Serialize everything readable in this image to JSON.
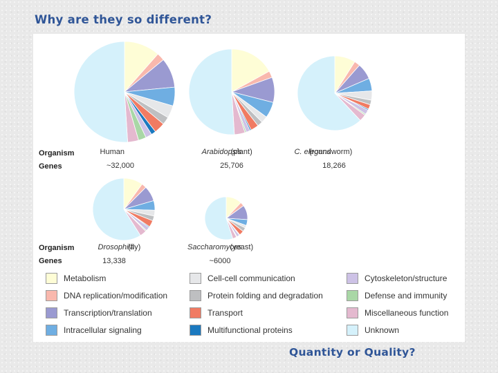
{
  "slide": {
    "title": "Why are they so different?",
    "footer": "Quantity or Quality?"
  },
  "colors": {
    "metabolism": "#fefdd6",
    "dna": "#f9b8ad",
    "transcription": "#9a9ad1",
    "intracellular": "#6faee2",
    "cellcell": "#e6e7e9",
    "folding": "#bebfc1",
    "transport": "#f07b63",
    "multifunctional": "#1b79bf",
    "cytoskeleton": "#cdc2e6",
    "defense": "#a9d7a6",
    "misc": "#e4b9cf",
    "unknown": "#d5f1fb"
  },
  "chart_data": {
    "type": "pie",
    "row_headers": {
      "organism": "Organism",
      "genes": "Genes"
    },
    "categories": [
      "Metabolism",
      "DNA replication/modification",
      "Transcription/translation",
      "Intracellular signaling",
      "Cell-cell communication",
      "Protein folding and degradation",
      "Transport",
      "Multifunctional proteins",
      "Cytoskeleton/structure",
      "Defense and immunity",
      "Miscellaneous function",
      "Unknown"
    ],
    "legend": [
      {
        "label": "Metabolism",
        "color_key": "metabolism"
      },
      {
        "label": "Cell-cell communication",
        "color_key": "cellcell"
      },
      {
        "label": "Cytoskeleton/structure",
        "color_key": "cytoskeleton"
      },
      {
        "label": "DNA replication/modification",
        "color_key": "dna"
      },
      {
        "label": "Protein folding and degradation",
        "color_key": "folding"
      },
      {
        "label": "Defense and immunity",
        "color_key": "defense"
      },
      {
        "label": "Transcription/translation",
        "color_key": "transcription"
      },
      {
        "label": "Transport",
        "color_key": "transport"
      },
      {
        "label": "Miscellaneous function",
        "color_key": "misc"
      },
      {
        "label": "Intracellular signaling",
        "color_key": "intracellular"
      },
      {
        "label": "Multifunctional proteins",
        "color_key": "multifunctional"
      },
      {
        "label": "Unknown",
        "color_key": "unknown"
      }
    ],
    "organisms": [
      {
        "name": "Human",
        "name_italic": "",
        "name_suffix": "",
        "genes": "~32,000",
        "slices": [
          {
            "category": "Metabolism",
            "color_key": "metabolism",
            "value": 11.5
          },
          {
            "category": "DNA replication/modification",
            "color_key": "dna",
            "value": 2.5
          },
          {
            "category": "Transcription/translation",
            "color_key": "transcription",
            "value": 9.5
          },
          {
            "category": "Intracellular signaling",
            "color_key": "intracellular",
            "value": 6.0
          },
          {
            "category": "Cell-cell communication",
            "color_key": "cellcell",
            "value": 4.0
          },
          {
            "category": "Protein folding and degradation",
            "color_key": "folding",
            "value": 2.5
          },
          {
            "category": "Transport",
            "color_key": "transport",
            "value": 3.5
          },
          {
            "category": "Multifunctional proteins",
            "color_key": "multifunctional",
            "value": 1.5
          },
          {
            "category": "Cytoskeleton/structure",
            "color_key": "cytoskeleton",
            "value": 2.0
          },
          {
            "category": "Defense and immunity",
            "color_key": "defense",
            "value": 2.5
          },
          {
            "category": "Miscellaneous function",
            "color_key": "misc",
            "value": 3.5
          },
          {
            "category": "Unknown",
            "color_key": "unknown",
            "value": 51.0
          }
        ]
      },
      {
        "name": "",
        "name_italic": "Arabidopsis",
        "name_suffix": " (plant)",
        "genes": "25,706",
        "slices": [
          {
            "category": "Metabolism",
            "color_key": "metabolism",
            "value": 17.0
          },
          {
            "category": "DNA replication/modification",
            "color_key": "dna",
            "value": 2.5
          },
          {
            "category": "Transcription/translation",
            "color_key": "transcription",
            "value": 9.5
          },
          {
            "category": "Intracellular signaling",
            "color_key": "intracellular",
            "value": 6.0
          },
          {
            "category": "Cell-cell communication",
            "color_key": "cellcell",
            "value": 2.5
          },
          {
            "category": "Protein folding and degradation",
            "color_key": "folding",
            "value": 2.0
          },
          {
            "category": "Transport",
            "color_key": "transport",
            "value": 3.0
          },
          {
            "category": "Multifunctional proteins",
            "color_key": "multifunctional",
            "value": 0.5
          },
          {
            "category": "Cytoskeleton/structure",
            "color_key": "cytoskeleton",
            "value": 1.5
          },
          {
            "category": "Defense and immunity",
            "color_key": "defense",
            "value": 0.5
          },
          {
            "category": "Miscellaneous function",
            "color_key": "misc",
            "value": 4.0
          },
          {
            "category": "Unknown",
            "color_key": "unknown",
            "value": 51.0
          }
        ]
      },
      {
        "name": "",
        "name_italic": "C. elegans",
        "name_suffix": " (roundworm)",
        "genes": "18,266",
        "slices": [
          {
            "category": "Metabolism",
            "color_key": "metabolism",
            "value": 9.0
          },
          {
            "category": "DNA replication/modification",
            "color_key": "dna",
            "value": 2.5
          },
          {
            "category": "Transcription/translation",
            "color_key": "transcription",
            "value": 7.0
          },
          {
            "category": "Intracellular signaling",
            "color_key": "intracellular",
            "value": 5.5
          },
          {
            "category": "Cell-cell communication",
            "color_key": "cellcell",
            "value": 4.0
          },
          {
            "category": "Protein folding and degradation",
            "color_key": "folding",
            "value": 2.0
          },
          {
            "category": "Transport",
            "color_key": "transport",
            "value": 2.0
          },
          {
            "category": "Multifunctional proteins",
            "color_key": "multifunctional",
            "value": 0.5
          },
          {
            "category": "Cytoskeleton/structure",
            "color_key": "cytoskeleton",
            "value": 2.0
          },
          {
            "category": "Defense and immunity",
            "color_key": "defense",
            "value": 0.5
          },
          {
            "category": "Miscellaneous function",
            "color_key": "misc",
            "value": 3.0
          },
          {
            "category": "Unknown",
            "color_key": "unknown",
            "value": 62.0
          }
        ]
      },
      {
        "name": "",
        "name_italic": "Drosophila",
        "name_suffix": " (fly)",
        "genes": "13,338",
        "slices": [
          {
            "category": "Metabolism",
            "color_key": "metabolism",
            "value": 10.0
          },
          {
            "category": "DNA replication/modification",
            "color_key": "dna",
            "value": 2.5
          },
          {
            "category": "Transcription/translation",
            "color_key": "transcription",
            "value": 8.0
          },
          {
            "category": "Intracellular signaling",
            "color_key": "intracellular",
            "value": 5.0
          },
          {
            "category": "Cell-cell communication",
            "color_key": "cellcell",
            "value": 3.0
          },
          {
            "category": "Protein folding and degradation",
            "color_key": "folding",
            "value": 2.5
          },
          {
            "category": "Transport",
            "color_key": "transport",
            "value": 3.5
          },
          {
            "category": "Multifunctional proteins",
            "color_key": "multifunctional",
            "value": 0.5
          },
          {
            "category": "Cytoskeleton/structure",
            "color_key": "cytoskeleton",
            "value": 2.0
          },
          {
            "category": "Defense and immunity",
            "color_key": "defense",
            "value": 0.5
          },
          {
            "category": "Miscellaneous function",
            "color_key": "misc",
            "value": 3.5
          },
          {
            "category": "Unknown",
            "color_key": "unknown",
            "value": 59.0
          }
        ]
      },
      {
        "name": "",
        "name_italic": "Saccharomyces",
        "name_suffix": " (yeast)",
        "genes": "~6000",
        "slices": [
          {
            "category": "Metabolism",
            "color_key": "metabolism",
            "value": 12.0
          },
          {
            "category": "DNA replication/modification",
            "color_key": "dna",
            "value": 3.0
          },
          {
            "category": "Transcription/translation",
            "color_key": "transcription",
            "value": 11.0
          },
          {
            "category": "Intracellular signaling",
            "color_key": "intracellular",
            "value": 4.5
          },
          {
            "category": "Cell-cell communication",
            "color_key": "cellcell",
            "value": 2.0
          },
          {
            "category": "Protein folding and degradation",
            "color_key": "folding",
            "value": 3.0
          },
          {
            "category": "Transport",
            "color_key": "transport",
            "value": 3.5
          },
          {
            "category": "Multifunctional proteins",
            "color_key": "multifunctional",
            "value": 0.5
          },
          {
            "category": "Cytoskeleton/structure",
            "color_key": "cytoskeleton",
            "value": 2.0
          },
          {
            "category": "Defense and immunity",
            "color_key": "defense",
            "value": 0.5
          },
          {
            "category": "Miscellaneous function",
            "color_key": "misc",
            "value": 3.0
          },
          {
            "category": "Unknown",
            "color_key": "unknown",
            "value": 55.0
          }
        ]
      }
    ]
  }
}
